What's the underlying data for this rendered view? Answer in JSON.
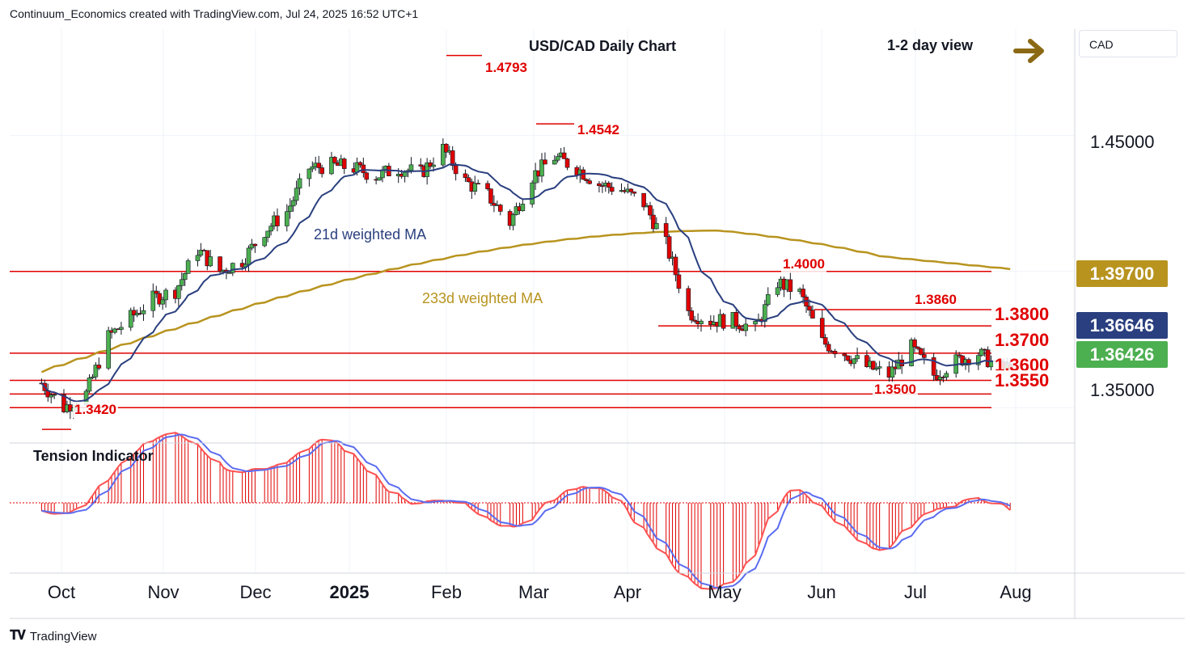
{
  "header": {
    "attribution": "Continuum_Economics created with TradingView.com, Jul 24, 2025 16:52 UTC+1"
  },
  "footer": {
    "logo_text": "TradingView"
  },
  "currency_box": "CAD",
  "chart_data": {
    "type": "candlestick",
    "title": "USD/CAD Daily Chart",
    "view_label": "1-2 day view",
    "x_ticks": [
      "Oct",
      "Nov",
      "Dec",
      "2025",
      "Feb",
      "Mar",
      "Apr",
      "May",
      "Jun",
      "Jul",
      "Aug"
    ],
    "y_ticks": [
      "1.45000",
      "1.35000"
    ],
    "ylim": [
      1.337,
      1.489
    ],
    "series": [
      {
        "name": "21d weighted MA",
        "color": "#2a3f7f"
      },
      {
        "name": "233d weighted MA",
        "color": "#b8941f"
      }
    ],
    "price_boxes": [
      {
        "label": "1.39700",
        "color": "#b8941f"
      },
      {
        "label": "1.36646",
        "color": "#2a3f7f"
      },
      {
        "label": "1.36426",
        "color": "#4caf50"
      }
    ],
    "levels": [
      {
        "label": "1.4793",
        "value": 1.4793
      },
      {
        "label": "1.4542",
        "value": 1.4542
      },
      {
        "label": "1.4000",
        "value": 1.4
      },
      {
        "label": "1.3860",
        "value": 1.386
      },
      {
        "label": "1.3800",
        "value": 1.38
      },
      {
        "label": "1.3700",
        "value": 1.37
      },
      {
        "label": "1.3600",
        "value": 1.36
      },
      {
        "label": "1.3550",
        "value": 1.355
      },
      {
        "label": "1.3500",
        "value": 1.35
      },
      {
        "label": "1.3420",
        "value": 1.342
      }
    ],
    "close_path": [
      [
        "2024-09-23",
        1.359
      ],
      [
        "2024-09-30",
        1.35
      ],
      [
        "2024-10-07",
        1.355
      ],
      [
        "2024-10-14",
        1.376
      ],
      [
        "2024-10-21",
        1.383
      ],
      [
        "2024-10-28",
        1.39
      ],
      [
        "2024-11-04",
        1.393
      ],
      [
        "2024-11-11",
        1.408
      ],
      [
        "2024-11-18",
        1.4
      ],
      [
        "2024-11-25",
        1.404
      ],
      [
        "2024-12-02",
        1.415
      ],
      [
        "2024-12-09",
        1.422
      ],
      [
        "2024-12-16",
        1.438
      ],
      [
        "2024-12-23",
        1.439
      ],
      [
        "2024-12-30",
        1.438
      ],
      [
        "2025-01-06",
        1.435
      ],
      [
        "2025-01-13",
        1.438
      ],
      [
        "2025-01-20",
        1.436
      ],
      [
        "2025-01-27",
        1.445
      ],
      [
        "2025-02-03",
        1.433
      ],
      [
        "2025-02-10",
        1.428
      ],
      [
        "2025-02-17",
        1.418
      ],
      [
        "2025-02-24",
        1.435
      ],
      [
        "2025-03-03",
        1.442
      ],
      [
        "2025-03-10",
        1.438
      ],
      [
        "2025-03-17",
        1.432
      ],
      [
        "2025-03-24",
        1.43
      ],
      [
        "2025-03-31",
        1.425
      ],
      [
        "2025-04-07",
        1.41
      ],
      [
        "2025-04-14",
        1.385
      ],
      [
        "2025-04-21",
        1.382
      ],
      [
        "2025-04-28",
        1.382
      ],
      [
        "2025-05-05",
        1.379
      ],
      [
        "2025-05-12",
        1.396
      ],
      [
        "2025-05-19",
        1.392
      ],
      [
        "2025-05-26",
        1.374
      ],
      [
        "2025-06-02",
        1.37
      ],
      [
        "2025-06-09",
        1.365
      ],
      [
        "2025-06-16",
        1.362
      ],
      [
        "2025-06-23",
        1.372
      ],
      [
        "2025-06-30",
        1.362
      ],
      [
        "2025-07-07",
        1.367
      ],
      [
        "2025-07-14",
        1.37
      ],
      [
        "2025-07-21",
        1.3643
      ]
    ]
  },
  "tension_indicator": {
    "title": "Tension Indicator"
  }
}
